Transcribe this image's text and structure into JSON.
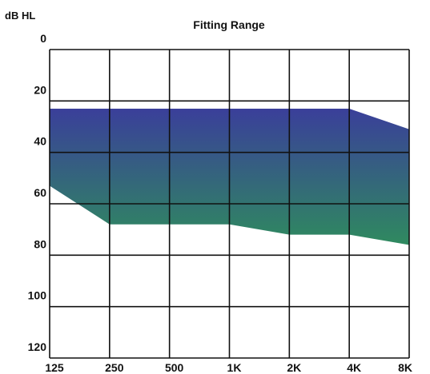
{
  "chart_data": {
    "type": "area",
    "title": "Fitting Range",
    "ylabel": "dB HL",
    "y_ticks": [
      0,
      20,
      40,
      60,
      80,
      100,
      120
    ],
    "ylim": [
      0,
      120
    ],
    "y_inverted": true,
    "x_ticks": [
      "125",
      "250",
      "500",
      "1K",
      "2K",
      "4K",
      "8K"
    ],
    "x_values_hz": [
      125,
      250,
      500,
      1000,
      2000,
      4000,
      8000
    ],
    "x_scale": "log",
    "grid": true,
    "series": [
      {
        "upper_db": [
          23,
          23,
          23,
          23,
          23,
          23,
          31
        ],
        "lower_db": [
          53,
          68,
          68,
          68,
          72,
          72,
          76
        ],
        "colors": {
          "top": "#3a3f9a",
          "bottom": "#2f8a5f"
        }
      }
    ]
  }
}
